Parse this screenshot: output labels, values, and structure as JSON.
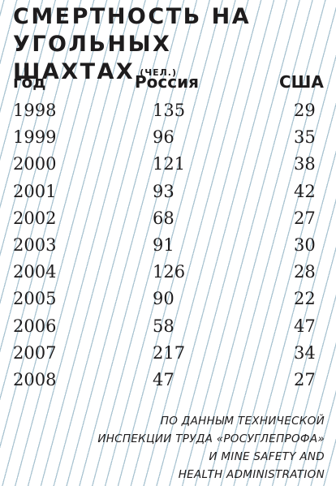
{
  "title": {
    "line1": "Смертность на",
    "line2": "угольных шахтах",
    "unit": "(чел.)"
  },
  "chart_data": {
    "type": "table",
    "columns": [
      "год",
      "Россия",
      "США"
    ],
    "rows": [
      {
        "year": "1998",
        "russia": "135",
        "usa": "29"
      },
      {
        "year": "1999",
        "russia": "96",
        "usa": "35"
      },
      {
        "year": "2000",
        "russia": "121",
        "usa": "38"
      },
      {
        "year": "2001",
        "russia": "93",
        "usa": "42"
      },
      {
        "year": "2002",
        "russia": "68",
        "usa": "27"
      },
      {
        "year": "2003",
        "russia": "91",
        "usa": "30"
      },
      {
        "year": "2004",
        "russia": "126",
        "usa": "28"
      },
      {
        "year": "2005",
        "russia": "90",
        "usa": "22"
      },
      {
        "year": "2006",
        "russia": "58",
        "usa": "47"
      },
      {
        "year": "2007",
        "russia": "217",
        "usa": "34"
      },
      {
        "year": "2008",
        "russia": "47",
        "usa": "27"
      }
    ]
  },
  "source": {
    "lines": [
      "по данным технической",
      "инспекции труда «Росуглепрофа»",
      "и Mine Safety and",
      "Health Administration"
    ]
  },
  "colors": {
    "background": "#ffffff",
    "stripes": "#aac4d2",
    "text": "#1e1c1d"
  }
}
